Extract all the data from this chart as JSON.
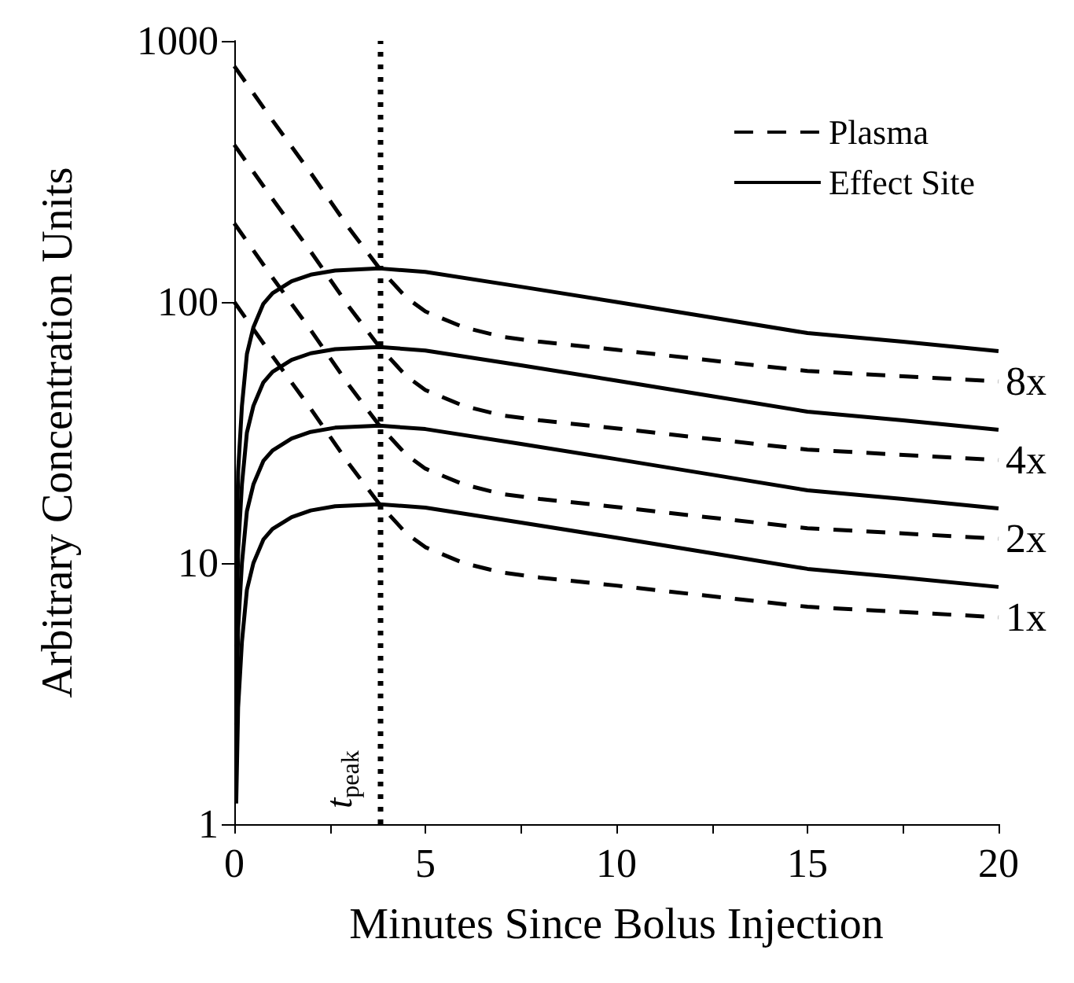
{
  "chart_data": {
    "type": "line",
    "xlabel": "Minutes Since Bolus Injection",
    "ylabel": "Arbitrary Concentration Units",
    "log": "y",
    "xlim": [
      0,
      20
    ],
    "xticks": [
      0,
      {
        "value": 2.5,
        "label": null
      },
      5,
      {
        "value": 7.5,
        "label": null
      },
      10,
      {
        "value": 12.5,
        "label": null
      },
      15,
      {
        "value": 17.5,
        "label": null
      },
      20
    ],
    "ylim": [
      1,
      1000
    ],
    "yticks": [
      1,
      10,
      100,
      1000
    ],
    "grid": false,
    "legend": "top right",
    "marker": "none",
    "series": [
      {
        "name": "Plasma",
        "color": "#000000",
        "line_style": "dashed",
        "x": [
          0,
          1,
          2,
          3,
          3.8,
          4.5,
          5,
          6,
          7,
          8,
          10,
          12,
          15,
          20
        ],
        "values": [
          800,
          496,
          312,
          192,
          134.4,
          104,
          92,
          80,
          73.6,
          70.4,
          65.6,
          60.8,
          54.4,
          49.6
        ]
      },
      {
        "color": "#000000",
        "line_style": "dashed",
        "x": [
          0,
          1,
          2,
          3,
          3.8,
          4.5,
          5,
          6,
          7,
          8,
          10,
          12,
          15,
          20
        ],
        "values": [
          400,
          248,
          156,
          96,
          67.2,
          52,
          46,
          40,
          36.8,
          35.2,
          32.8,
          30.4,
          27.2,
          24.8
        ]
      },
      {
        "color": "#000000",
        "line_style": "dashed",
        "x": [
          0,
          1,
          2,
          3,
          3.8,
          4.5,
          5,
          6,
          7,
          8,
          10,
          12,
          15,
          20
        ],
        "values": [
          200,
          124,
          78,
          48,
          33.6,
          26,
          23,
          20,
          18.4,
          17.6,
          16.4,
          15.2,
          13.6,
          12.4
        ]
      },
      {
        "color": "#000000",
        "line_style": "dashed",
        "x": [
          0,
          1,
          2,
          3,
          3.8,
          4.5,
          5,
          6,
          7,
          8,
          10,
          12,
          15,
          20
        ],
        "values": [
          100,
          62,
          39,
          24,
          16.8,
          13,
          11.5,
          10,
          9.2,
          8.8,
          8.2,
          7.6,
          6.8,
          6.2
        ]
      },
      {
        "name": "Effect Site",
        "color": "#000000",
        "line_style": "solid",
        "x": [
          0.05,
          0.1,
          0.2,
          0.33,
          0.5,
          0.76,
          1,
          1.5,
          2,
          2.64,
          3.8,
          5,
          7.5,
          10,
          12.5,
          15,
          17.5,
          20
        ],
        "values": [
          9.6,
          22.4,
          40,
          63.2,
          80,
          98.4,
          108,
          120,
          127.2,
          132,
          134.4,
          130.4,
          114.4,
          100,
          87.2,
          76,
          70.4,
          64.8
        ]
      },
      {
        "color": "#000000",
        "line_style": "solid",
        "x": [
          0.05,
          0.1,
          0.2,
          0.33,
          0.5,
          0.76,
          1,
          1.5,
          2,
          2.64,
          3.8,
          5,
          7.5,
          10,
          12.5,
          15,
          17.5,
          20
        ],
        "values": [
          4.8,
          11.2,
          20,
          31.6,
          40,
          49.2,
          54,
          60,
          63.6,
          66,
          67.2,
          65.2,
          57.2,
          50,
          43.6,
          38,
          35.2,
          32.4
        ]
      },
      {
        "color": "#000000",
        "line_style": "solid",
        "x": [
          0.05,
          0.1,
          0.2,
          0.33,
          0.5,
          0.76,
          1,
          1.5,
          2,
          2.64,
          3.8,
          5,
          7.5,
          10,
          12.5,
          15,
          17.5,
          20
        ],
        "values": [
          2.4,
          5.6,
          10,
          15.8,
          20,
          24.6,
          27,
          30,
          31.8,
          33,
          33.6,
          32.6,
          28.6,
          25,
          21.8,
          19,
          17.6,
          16.2
        ]
      },
      {
        "color": "#000000",
        "line_style": "solid",
        "x": [
          0.05,
          0.1,
          0.2,
          0.33,
          0.5,
          0.76,
          1,
          1.5,
          2,
          2.64,
          3.8,
          5,
          7.5,
          10,
          12.5,
          15,
          17.5,
          20
        ],
        "values": [
          1.2,
          2.8,
          5,
          7.9,
          10,
          12.3,
          13.5,
          15,
          15.9,
          16.5,
          16.8,
          16.3,
          14.3,
          12.5,
          10.9,
          9.5,
          8.8,
          8.1
        ]
      }
    ],
    "ref_lines": [
      {
        "axis": "x",
        "value": 3.8,
        "label": "t$_{peak}$",
        "color": "#000000",
        "line_style": "dotted"
      }
    ],
    "annotations": [
      "8x",
      "4x",
      "2x",
      "1x"
    ]
  }
}
